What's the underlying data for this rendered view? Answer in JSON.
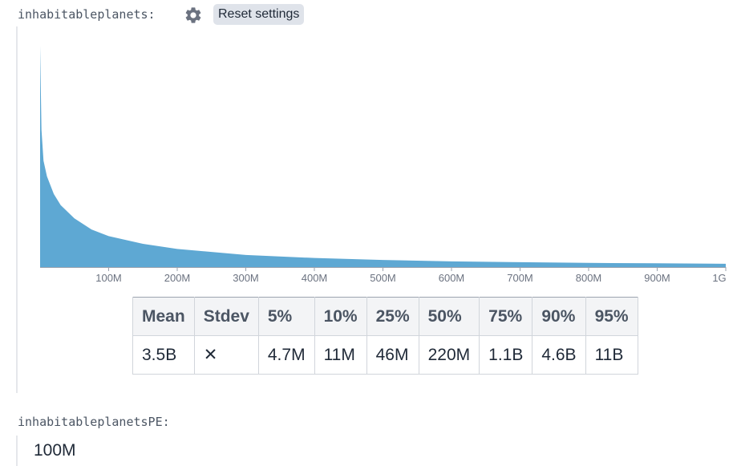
{
  "vars": [
    {
      "name": "inhabitableplanets:"
    },
    {
      "name": "inhabitableplanetsPE:",
      "value": "100M"
    }
  ],
  "toolbar": {
    "settings_icon": "gear-icon",
    "reset_label": "Reset settings"
  },
  "colors": {
    "fill": "#5ea8d3",
    "axis": "#9ca3af",
    "tick_text": "#6b7280"
  },
  "chart_data": {
    "type": "area",
    "xlabel": "",
    "ylabel": "",
    "xlim": [
      0,
      1000000000
    ],
    "x_ticks": [
      {
        "value": 100000000,
        "label": "100M"
      },
      {
        "value": 200000000,
        "label": "200M"
      },
      {
        "value": 300000000,
        "label": "300M"
      },
      {
        "value": 400000000,
        "label": "400M"
      },
      {
        "value": 500000000,
        "label": "500M"
      },
      {
        "value": 600000000,
        "label": "600M"
      },
      {
        "value": 700000000,
        "label": "700M"
      },
      {
        "value": 800000000,
        "label": "800M"
      },
      {
        "value": 900000000,
        "label": "900M"
      },
      {
        "value": 1000000000,
        "label": "1G"
      }
    ],
    "grid": false,
    "x": [
      0,
      2000000,
      5000000,
      10000000,
      20000000,
      30000000,
      50000000,
      75000000,
      100000000,
      150000000,
      200000000,
      300000000,
      400000000,
      500000000,
      600000000,
      700000000,
      800000000,
      900000000,
      1000000000
    ],
    "y": [
      1.0,
      0.62,
      0.48,
      0.41,
      0.33,
      0.28,
      0.22,
      0.17,
      0.14,
      0.105,
      0.082,
      0.055,
      0.041,
      0.032,
      0.026,
      0.022,
      0.019,
      0.017,
      0.015
    ]
  },
  "stats": {
    "headers": [
      "Mean",
      "Stdev",
      "5%",
      "10%",
      "25%",
      "50%",
      "75%",
      "90%",
      "95%"
    ],
    "values": [
      "3.5B",
      "✕",
      "4.7M",
      "11M",
      "46M",
      "220M",
      "1.1B",
      "4.6B",
      "11B"
    ]
  }
}
